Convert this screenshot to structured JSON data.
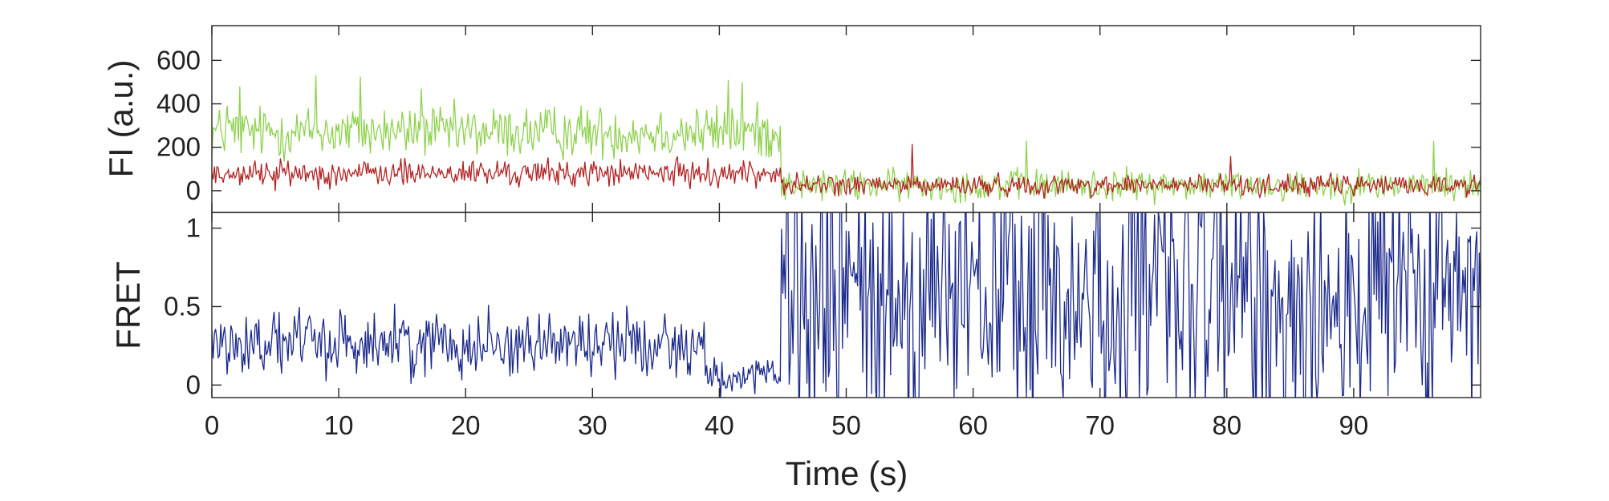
{
  "chart_data": [
    {
      "panel": "top",
      "type": "line",
      "ylabel": "FI (a.u.)",
      "xlabel": "",
      "xlim": [
        0,
        100
      ],
      "ylim": [
        -100,
        760
      ],
      "yticks": [
        0,
        200,
        400,
        600
      ],
      "xticks": [
        0,
        10,
        20,
        30,
        40,
        50,
        60,
        70,
        80,
        90
      ],
      "grid": false,
      "series": [
        {
          "color": "#8fd14f",
          "sample_interval_s": 0.1,
          "segments": [
            {
              "t0": 0,
              "t1": 44.9,
              "mean": 270,
              "noise": 75
            },
            {
              "t0": 44.9,
              "t1": 100,
              "mean": 25,
              "noise": 45
            }
          ],
          "spikes": [
            [
              1.2,
              390
            ],
            [
              2.2,
              480
            ],
            [
              8.2,
              530
            ],
            [
              11.7,
              525
            ],
            [
              16.5,
              470
            ],
            [
              40.7,
              510
            ],
            [
              41.8,
              500
            ],
            [
              64.2,
              230
            ],
            [
              96.3,
              230
            ]
          ]
        },
        {
          "color": "#b22222",
          "sample_interval_s": 0.1,
          "segments": [
            {
              "t0": 0,
              "t1": 44.9,
              "mean": 80,
              "noise": 38
            },
            {
              "t0": 44.9,
              "t1": 100,
              "mean": 25,
              "noise": 30
            }
          ],
          "spikes": [
            [
              55.2,
              215
            ],
            [
              80.3,
              160
            ]
          ]
        }
      ]
    },
    {
      "panel": "bottom",
      "type": "line",
      "ylabel": "FRET",
      "xlabel": "Time (s)",
      "xlim": [
        0,
        100
      ],
      "ylim": [
        -0.08,
        1.1
      ],
      "yticks": [
        0,
        0.5,
        1
      ],
      "ytick_labels": [
        "0",
        "0.5",
        "1"
      ],
      "xticks": [
        0,
        10,
        20,
        30,
        40,
        50,
        60,
        70,
        80,
        90
      ],
      "grid": false,
      "series": [
        {
          "color": "#1c2a8c",
          "sample_interval_s": 0.1,
          "segments": [
            {
              "t0": 0,
              "t1": 38.9,
              "mean": 0.27,
              "noise": 0.13
            },
            {
              "t0": 38.9,
              "t1": 44.9,
              "mean": 0.05,
              "noise": 0.07
            },
            {
              "t0": 44.9,
              "t1": 100,
              "mean": 0.55,
              "noise": 0.6
            }
          ]
        }
      ]
    }
  ]
}
